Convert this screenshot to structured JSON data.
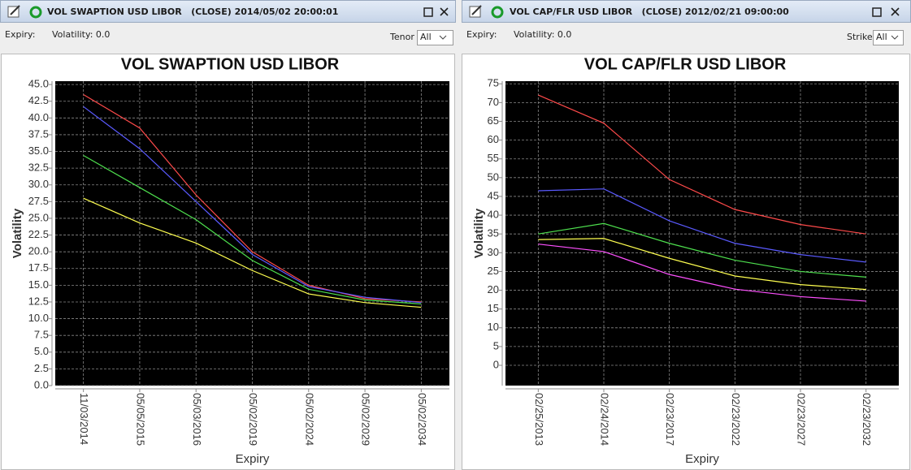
{
  "windows": [
    {
      "title": "VOL SWAPTION USD LIBOR   (CLOSE) 2014/05/02 20:00:01",
      "toolbar": {
        "expiry_label": "Expiry:",
        "volatility_label": "Volatility: 0.0",
        "filter_label": "Tenor",
        "filter_value": "All"
      },
      "chart_data": {
        "type": "line",
        "title": "VOL SWAPTION USD LIBOR",
        "x_label": "Expiry",
        "y_label": "Volatility",
        "grid": true,
        "categories": [
          "11/03/2014",
          "05/05/2015",
          "05/03/2016",
          "05/02/2019",
          "05/02/2024",
          "05/02/2029",
          "05/02/2034"
        ],
        "ylim": [
          0,
          45.5
        ],
        "yticks": [
          {
            "value": 0,
            "label": "0.0"
          },
          2.5,
          {
            "value": 5,
            "label": "5.0"
          },
          7.5,
          {
            "value": 10,
            "label": "10.0"
          },
          12.5,
          {
            "value": 15,
            "label": "15.0"
          },
          17.5,
          {
            "value": 20,
            "label": "20.0"
          },
          22.5,
          {
            "value": 25,
            "label": "25.0"
          },
          27.5,
          {
            "value": 30,
            "label": "30.0"
          },
          32.5,
          {
            "value": 35,
            "label": "35.0"
          },
          37.5,
          {
            "value": 40,
            "label": "40.0"
          },
          42.5,
          {
            "value": 45,
            "label": "45.0"
          }
        ],
        "series": [
          {
            "color": "#ff4a4a",
            "values": [
              43.5,
              38.5,
              28.5,
              20.0,
              15.0,
              13.0,
              12.5
            ]
          },
          {
            "color": "#5a5aff",
            "values": [
              41.7,
              35.4,
              27.5,
              19.6,
              14.8,
              13.2,
              12.4
            ]
          },
          {
            "color": "#4ee04e",
            "values": [
              34.4,
              29.6,
              24.8,
              18.7,
              14.4,
              12.8,
              12.2
            ]
          },
          {
            "color": "#ffff50",
            "values": [
              28.0,
              24.3,
              21.3,
              17.2,
              13.7,
              12.4,
              11.7
            ]
          }
        ]
      }
    },
    {
      "title": "VOL CAP/FLR USD LIBOR   (CLOSE) 2012/02/21 09:00:00",
      "toolbar": {
        "expiry_label": "Expiry:",
        "volatility_label": "Volatility: 0.0",
        "filter_label": "Strike",
        "filter_value": "All"
      },
      "chart_data": {
        "type": "line",
        "title": "VOL CAP/FLR USD LIBOR",
        "x_label": "Expiry",
        "y_label": "Volatility",
        "grid": true,
        "categories": [
          "02/25/2013",
          "02/24/2014",
          "02/23/2017",
          "02/23/2022",
          "02/23/2027",
          "02/23/2032"
        ],
        "ylim": [
          -5.4,
          75.7
        ],
        "yticks": [
          0,
          5,
          10,
          15,
          20,
          25,
          30,
          35,
          40,
          45,
          50,
          55,
          60,
          65,
          70,
          75
        ],
        "series": [
          {
            "color": "#ff4a4a",
            "values": [
              72.0,
              64.5,
              49.5,
              41.5,
              37.5,
              35.0
            ]
          },
          {
            "color": "#5a5aff",
            "values": [
              46.5,
              47.0,
              38.5,
              32.5,
              29.5,
              27.5
            ]
          },
          {
            "color": "#4ee04e",
            "values": [
              35.0,
              37.8,
              32.5,
              28.0,
              25.0,
              23.5
            ]
          },
          {
            "color": "#ffff50",
            "values": [
              33.5,
              33.8,
              28.5,
              23.8,
              21.5,
              20.2
            ]
          },
          {
            "color": "#ff50ff",
            "values": [
              32.3,
              30.3,
              24.2,
              20.3,
              18.3,
              17.1
            ]
          }
        ]
      }
    }
  ]
}
